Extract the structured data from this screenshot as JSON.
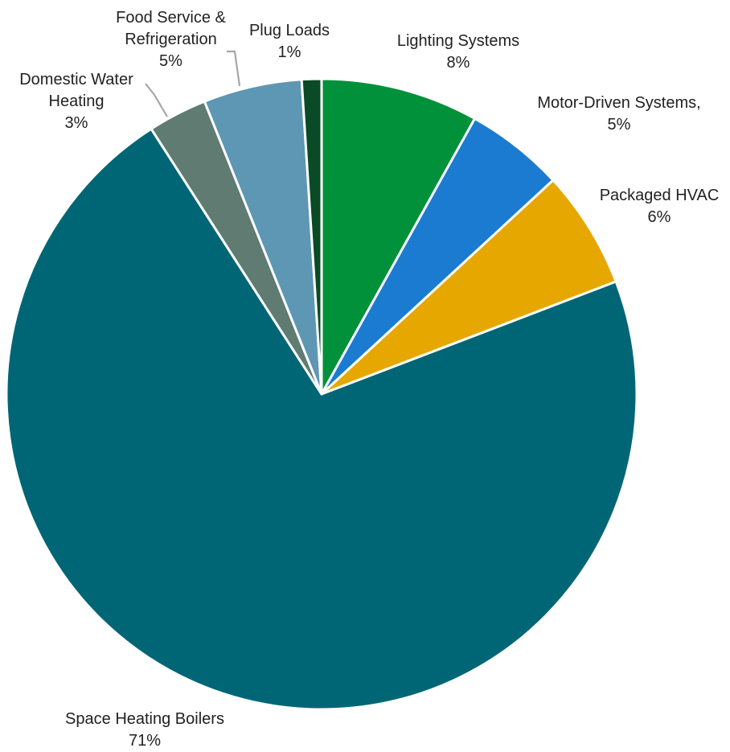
{
  "chart_data": {
    "type": "pie",
    "title": "",
    "start_angle_deg": 0,
    "direction": "clockwise",
    "slices": [
      {
        "name": "Lighting Systems",
        "value": 8,
        "value_label": "8%",
        "color": "#00913a",
        "label_lines": [
          "Lighting Systems",
          "8%"
        ]
      },
      {
        "name": "Motor-Driven Systems,",
        "value": 5,
        "value_label": "5%",
        "color": "#1b7bd1",
        "label_lines": [
          "Motor-Driven Systems,",
          "5%"
        ]
      },
      {
        "name": "Packaged HVAC",
        "value": 6,
        "value_label": "6%",
        "color": "#e6a800",
        "label_lines": [
          "Packaged HVAC",
          "6%"
        ]
      },
      {
        "name": "Space Heating Boilers",
        "value": 71,
        "value_label": "71%",
        "color": "#006675",
        "label_lines": [
          "Space Heating Boilers",
          "71%"
        ]
      },
      {
        "name": "Domestic Water Heating",
        "value": 3,
        "value_label": "3%",
        "color": "#5f7b72",
        "label_lines": [
          "Domestic Water",
          "Heating",
          "3%"
        ]
      },
      {
        "name": "Food Service & Refrigeration",
        "value": 5,
        "value_label": "5%",
        "color": "#5e97b4",
        "label_lines": [
          "Food Service &",
          "Refrigeration",
          "5%"
        ]
      },
      {
        "name": "Plug Loads",
        "value": 1,
        "value_label": "1%",
        "color": "#0b4a26",
        "label_lines": [
          "Plug Loads",
          "1%"
        ]
      }
    ]
  }
}
